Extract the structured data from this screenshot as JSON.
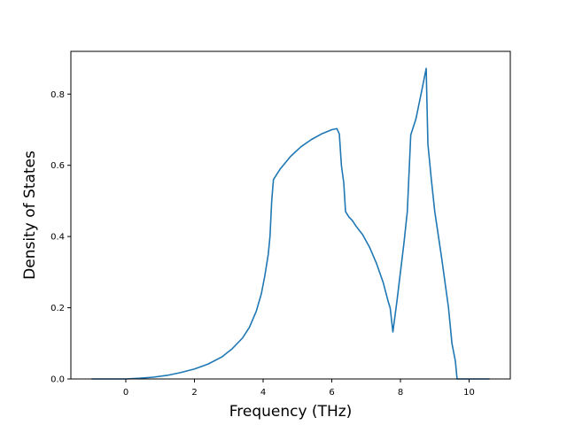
{
  "chart_data": {
    "type": "line",
    "title": "",
    "xlabel": "Frequency (THz)",
    "ylabel": "Density of States",
    "xlim": [
      -1.6,
      11.2
    ],
    "ylim": [
      0.0,
      0.92
    ],
    "xticks": [
      0,
      2,
      4,
      6,
      8,
      10
    ],
    "yticks": [
      0.0,
      0.2,
      0.4,
      0.6,
      0.8
    ],
    "xtick_labels": [
      "0",
      "2",
      "4",
      "6",
      "8",
      "10"
    ],
    "ytick_labels": [
      "0.0",
      "0.2",
      "0.4",
      "0.6",
      "0.8"
    ],
    "grid": false,
    "legend": "none",
    "series": [
      {
        "color": "#1f77b4",
        "x": [
          -1.0,
          -0.5,
          0.0,
          0.4,
          0.8,
          1.2,
          1.6,
          2.0,
          2.4,
          2.8,
          3.1,
          3.4,
          3.6,
          3.8,
          3.95,
          4.05,
          4.15,
          4.2,
          4.25,
          4.3,
          4.5,
          4.8,
          5.1,
          5.4,
          5.7,
          6.0,
          6.15,
          6.22,
          6.28,
          6.35,
          6.4,
          6.5,
          6.6,
          6.7,
          6.9,
          7.1,
          7.3,
          7.5,
          7.65,
          7.7,
          7.78,
          7.9,
          8.0,
          8.1,
          8.2,
          8.3,
          8.45,
          8.6,
          8.75,
          8.8,
          8.9,
          9.0,
          9.2,
          9.4,
          9.5,
          9.6,
          9.65,
          9.7,
          10.0,
          10.3,
          10.6
        ],
        "y": [
          0.0,
          0.0,
          0.0,
          0.002,
          0.005,
          0.01,
          0.018,
          0.028,
          0.042,
          0.062,
          0.085,
          0.115,
          0.145,
          0.19,
          0.24,
          0.29,
          0.35,
          0.4,
          0.5,
          0.56,
          0.59,
          0.625,
          0.652,
          0.672,
          0.688,
          0.7,
          0.703,
          0.688,
          0.6,
          0.55,
          0.47,
          0.455,
          0.445,
          0.43,
          0.405,
          0.37,
          0.325,
          0.27,
          0.215,
          0.2,
          0.132,
          0.22,
          0.3,
          0.38,
          0.47,
          0.685,
          0.73,
          0.8,
          0.872,
          0.66,
          0.56,
          0.47,
          0.34,
          0.2,
          0.1,
          0.05,
          0.0,
          0.0,
          0.0,
          0.0,
          0.0
        ]
      }
    ]
  }
}
